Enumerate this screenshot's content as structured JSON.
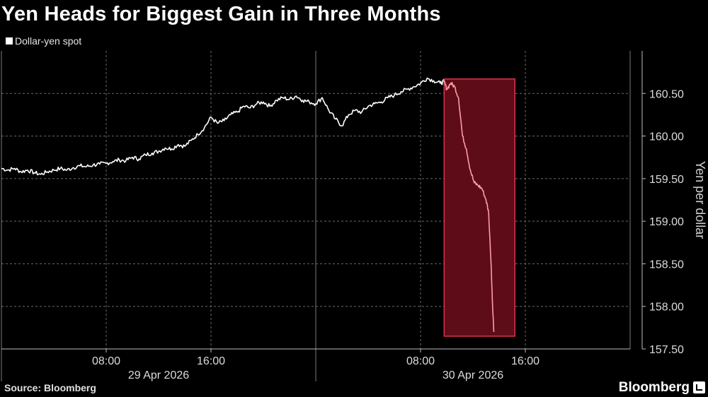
{
  "header": {
    "title": "Yen Heads for Biggest Gain in Three Months"
  },
  "legend": {
    "label": "Dollar-yen spot"
  },
  "footer": {
    "source": "Source: Bloomberg",
    "brand": "Bloomberg"
  },
  "colors": {
    "line": "#ffffff",
    "highlight_fill": "#5e0d18",
    "highlight_border": "#d9334a",
    "highlight_line": "#ff9ca8",
    "grid": "#6a6a6a"
  },
  "chart_data": {
    "type": "line",
    "title": "Yen Heads for Biggest Gain in Three Months",
    "ylabel": "Yen per dollar",
    "ylim": [
      157.5,
      161.0
    ],
    "yticks": [
      "160.50",
      "160.00",
      "159.50",
      "159.00",
      "158.50",
      "158.00",
      "157.50"
    ],
    "ytick_values": [
      160.5,
      160.0,
      159.5,
      159.0,
      158.5,
      158.0,
      157.5
    ],
    "xlim_hours": [
      0,
      48
    ],
    "xticks": [
      {
        "hour": 8,
        "label": "08:00"
      },
      {
        "hour": 16,
        "label": "16:00"
      },
      {
        "hour": 32,
        "label": "08:00"
      },
      {
        "hour": 40,
        "label": "16:00"
      }
    ],
    "date_labels": [
      {
        "hour": 12,
        "label": "29 Apr 2026"
      },
      {
        "hour": 36,
        "label": "30 Apr 2026"
      }
    ],
    "highlight": {
      "x_start_hour": 33.8,
      "x_end_hour": 39.2,
      "y_range": [
        157.65,
        160.67
      ]
    },
    "series": [
      {
        "name": "Dollar-yen spot",
        "x": [
          0,
          0.5,
          1,
          1.5,
          2,
          2.5,
          3,
          3.5,
          4,
          4.5,
          5,
          5.5,
          6,
          6.5,
          7,
          7.5,
          8,
          8.5,
          9,
          9.5,
          10,
          10.5,
          11,
          11.5,
          12,
          12.5,
          13,
          13.5,
          14,
          14.5,
          15,
          15.5,
          16,
          16.5,
          17,
          17.5,
          18,
          18.5,
          19,
          19.5,
          20,
          20.5,
          21,
          21.5,
          22,
          22.5,
          23,
          23.5,
          24,
          24.5,
          25,
          25.5,
          26,
          26.5,
          27,
          27.5,
          28,
          28.5,
          29,
          29.5,
          30,
          30.5,
          31,
          31.5,
          32,
          32.5,
          33,
          33.5,
          33.8,
          34,
          34.3,
          34.6,
          34.9,
          35.2,
          35.5,
          35.8,
          36.1,
          36.4,
          36.7,
          37,
          37.2,
          37.4,
          37.5,
          37.6
        ],
        "y": [
          159.62,
          159.6,
          159.62,
          159.58,
          159.6,
          159.57,
          159.55,
          159.58,
          159.6,
          159.62,
          159.6,
          159.63,
          159.65,
          159.64,
          159.66,
          159.67,
          159.68,
          159.7,
          159.72,
          159.71,
          159.75,
          159.73,
          159.78,
          159.8,
          159.82,
          159.86,
          159.85,
          159.9,
          159.88,
          159.95,
          160.02,
          160.1,
          160.22,
          160.15,
          160.18,
          160.25,
          160.28,
          160.35,
          160.33,
          160.38,
          160.4,
          160.35,
          160.42,
          160.45,
          160.43,
          160.47,
          160.42,
          160.4,
          160.38,
          160.45,
          160.3,
          160.2,
          160.12,
          160.25,
          160.3,
          160.28,
          160.35,
          160.38,
          160.4,
          160.45,
          160.48,
          160.52,
          160.55,
          160.58,
          160.62,
          160.68,
          160.65,
          160.62,
          160.64,
          160.55,
          160.62,
          160.58,
          160.45,
          160.0,
          159.85,
          159.6,
          159.45,
          159.42,
          159.38,
          159.25,
          159.1,
          158.45,
          158.0,
          157.7
        ]
      }
    ]
  }
}
